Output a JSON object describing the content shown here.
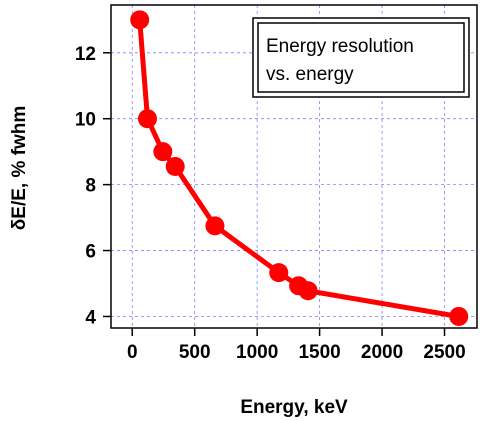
{
  "chart_data": {
    "type": "line",
    "title": "",
    "xlabel": "Energy, keV",
    "ylabel": "δE/E, % fwhm",
    "xlim": [
      -170,
      2760
    ],
    "ylim": [
      3.65,
      13.45
    ],
    "x_ticks": [
      0,
      500,
      1000,
      1500,
      2000,
      2500
    ],
    "y_ticks": [
      4,
      6,
      8,
      10,
      12
    ],
    "x_tick_labels": [
      "0",
      "500",
      "1000",
      "1500",
      "2000",
      "2500"
    ],
    "y_tick_labels": [
      "4",
      "6",
      "8",
      "10",
      "12"
    ],
    "grid": true,
    "legend_text": [
      "Energy resolution",
      "vs. energy"
    ],
    "legend_position": "top-right",
    "series_color": "#ff0000",
    "series": [
      {
        "x": [
          60,
          122,
          245,
          344,
          662,
          1173,
          1332,
          1408,
          2614
        ],
        "y": [
          13.0,
          10.0,
          9.0,
          8.55,
          6.75,
          5.33,
          4.93,
          4.78,
          4.0
        ]
      }
    ]
  }
}
